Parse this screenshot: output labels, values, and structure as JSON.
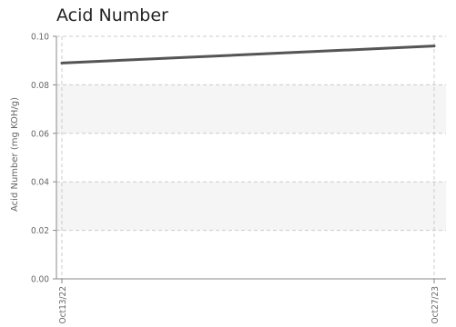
{
  "chart_data": {
    "type": "line",
    "title": "Acid Number",
    "xlabel": "",
    "ylabel": "Acid Number (mg KOH/g)",
    "categories": [
      "Oct13/22",
      "Oct27/23"
    ],
    "series": [
      {
        "values": [
          0.089,
          0.096
        ]
      }
    ],
    "y_ticks": [
      "0.00",
      "0.02",
      "0.04",
      "0.06",
      "0.08",
      "0.10"
    ],
    "ylim": [
      0,
      0.1
    ],
    "grid": true,
    "legend": "none",
    "colors": {
      "line": "#555555",
      "band": "#f5f5f5",
      "grid": "#cccccc",
      "axis": "#888888"
    }
  }
}
